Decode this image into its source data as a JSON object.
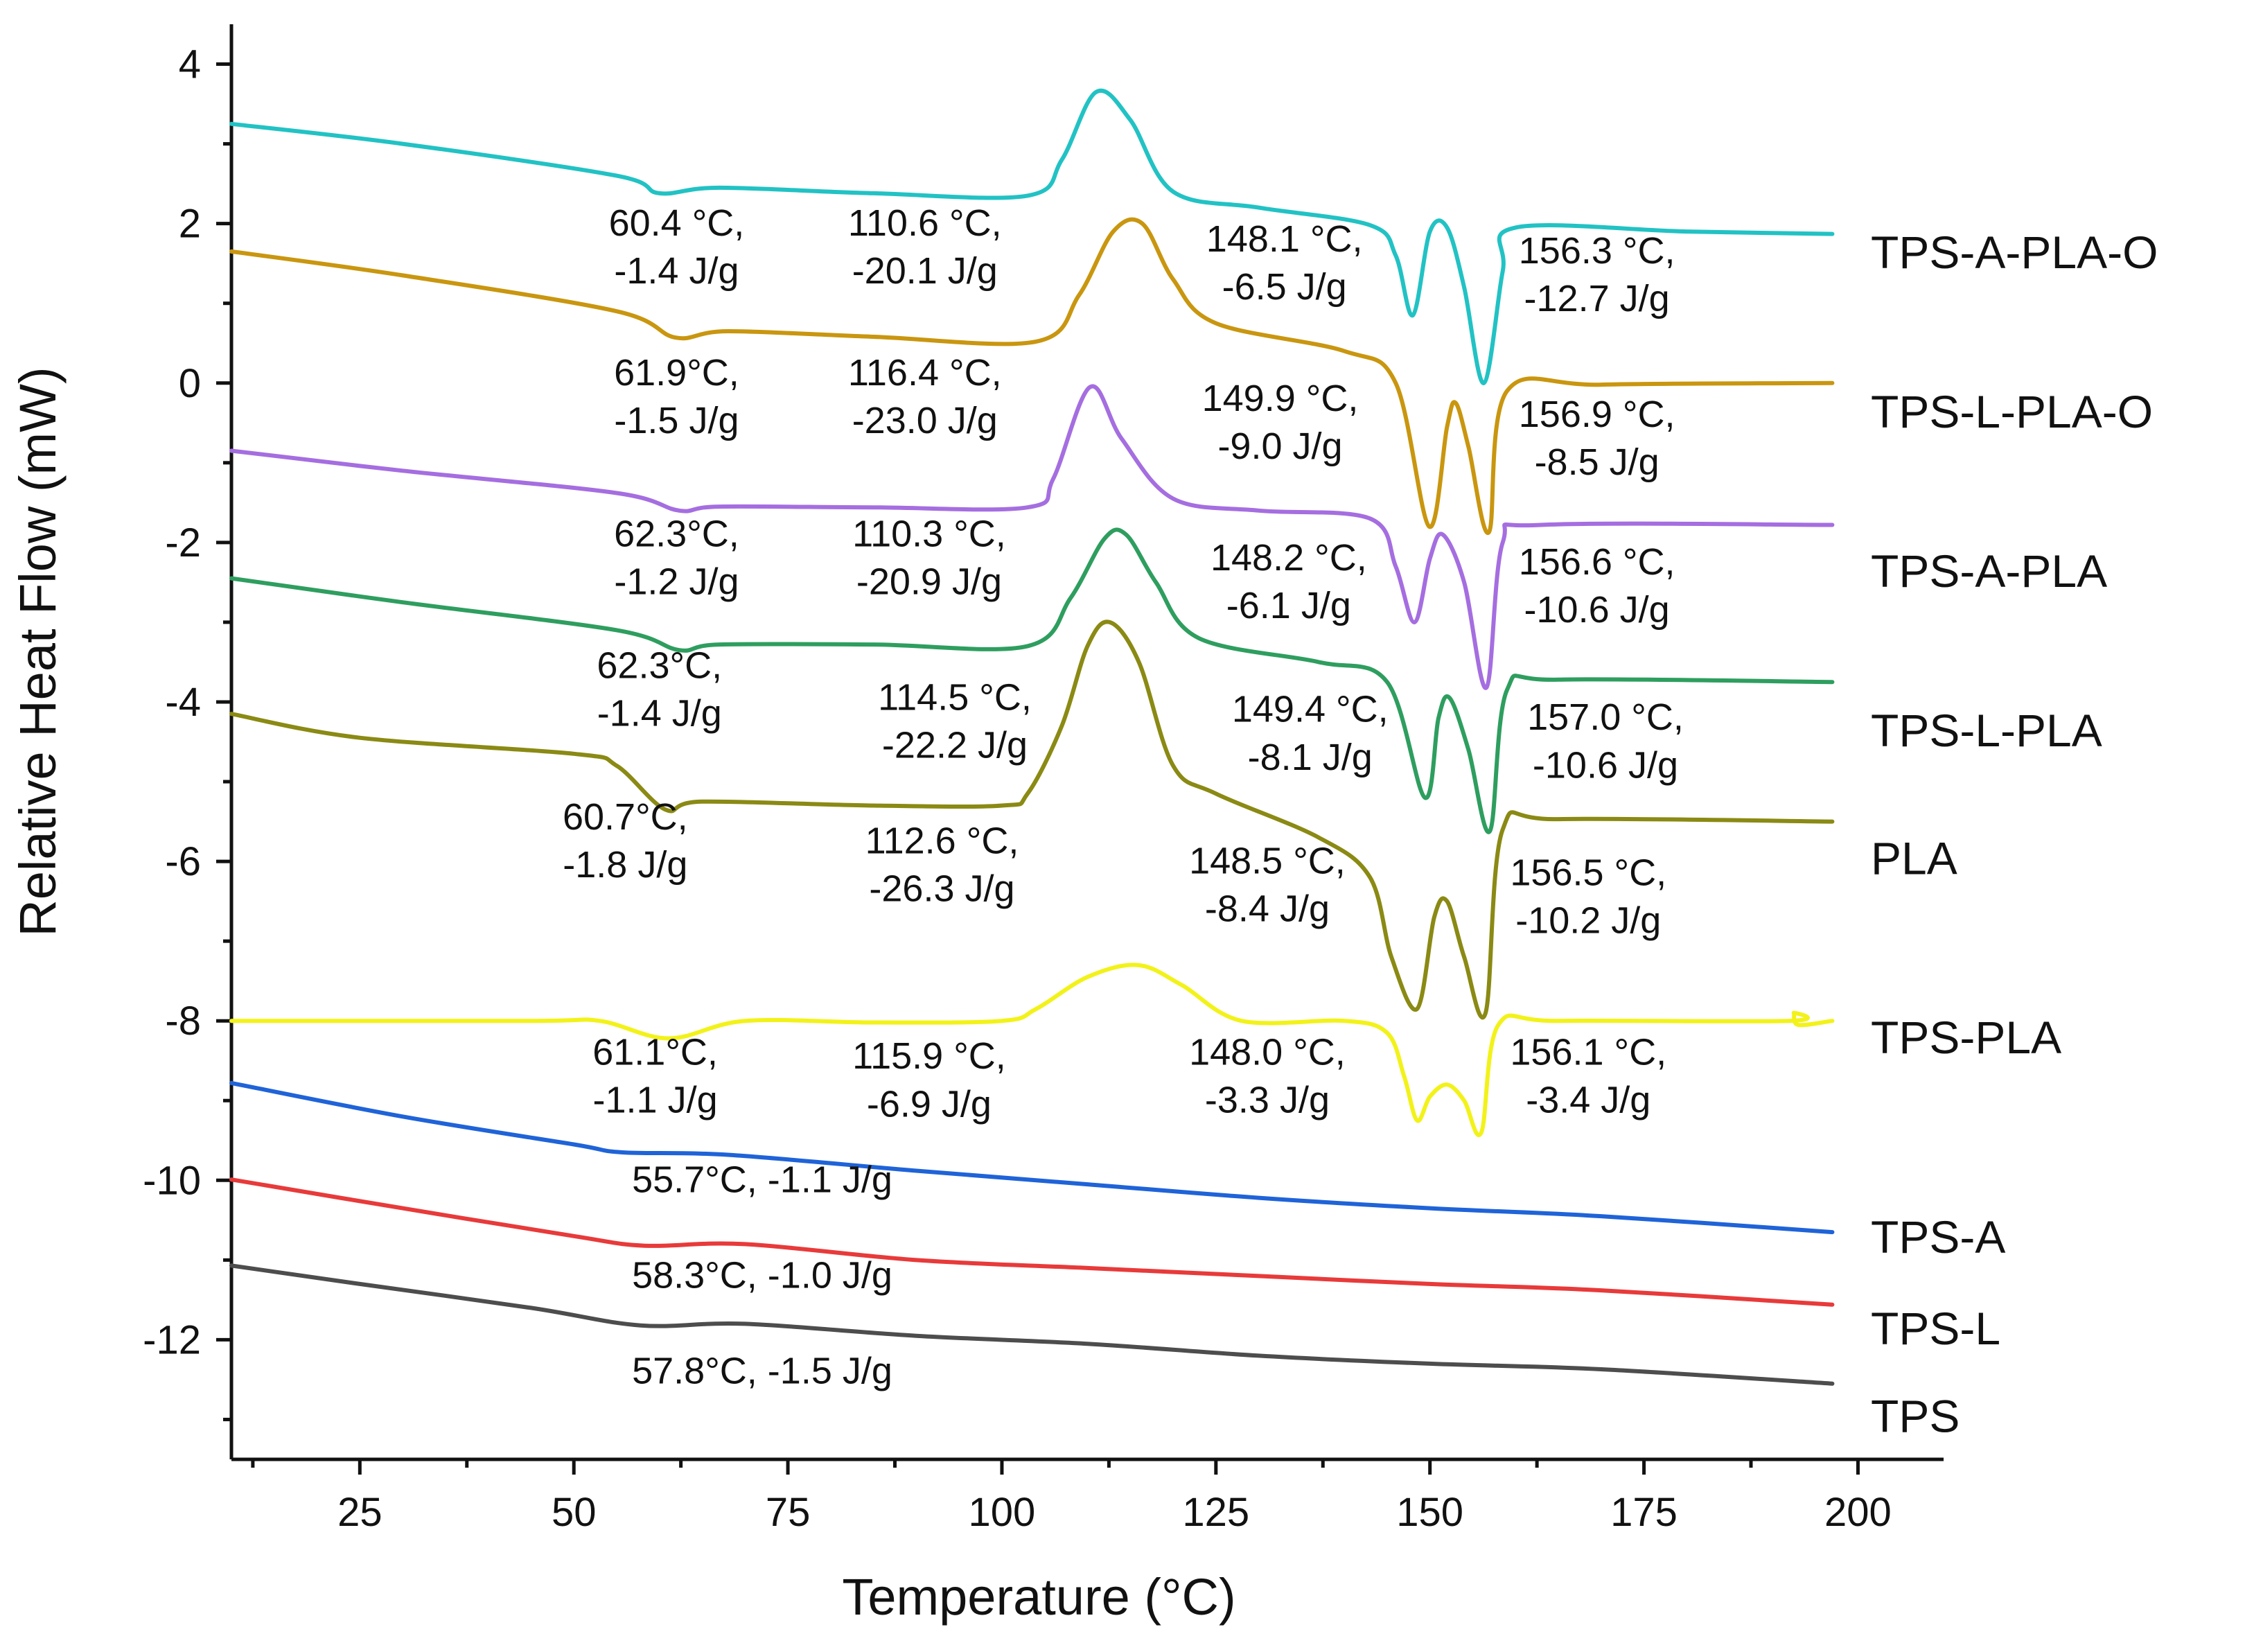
{
  "chart_data": {
    "type": "line",
    "title": "",
    "xlabel": "Temperature (°C)",
    "ylabel": "Relative Heat Flow (mW)",
    "xlim": [
      10,
      210
    ],
    "ylim": [
      -13.5,
      4.5
    ],
    "x_ticks": [
      25,
      50,
      75,
      100,
      125,
      150,
      175,
      200
    ],
    "y_ticks": [
      4,
      2,
      0,
      -2,
      -4,
      -6,
      -8,
      -10,
      -12
    ],
    "grid": false,
    "series": [
      {
        "name": "TPS-A-PLA-O",
        "color": "#22c2c4",
        "points": [
          [
            10,
            3.25
          ],
          [
            30,
            3.0
          ],
          [
            55,
            2.6
          ],
          [
            60,
            2.38
          ],
          [
            67,
            2.45
          ],
          [
            85,
            2.38
          ],
          [
            103,
            2.35
          ],
          [
            107,
            2.8
          ],
          [
            111,
            3.65
          ],
          [
            115,
            3.3
          ],
          [
            120,
            2.4
          ],
          [
            130,
            2.2
          ],
          [
            143,
            1.98
          ],
          [
            146,
            1.6
          ],
          [
            148,
            0.85
          ],
          [
            150,
            1.9
          ],
          [
            152,
            1.95
          ],
          [
            154,
            1.2
          ],
          [
            156.3,
            0.0
          ],
          [
            158.5,
            1.4
          ],
          [
            160,
            1.95
          ],
          [
            180,
            1.9
          ],
          [
            197,
            1.87
          ]
        ]
      },
      {
        "name": "TPS-L-PLA-O",
        "color": "#c9960f",
        "points": [
          [
            10,
            1.65
          ],
          [
            30,
            1.35
          ],
          [
            55,
            0.9
          ],
          [
            61.9,
            0.57
          ],
          [
            68,
            0.65
          ],
          [
            85,
            0.58
          ],
          [
            104,
            0.52
          ],
          [
            109,
            1.1
          ],
          [
            113,
            1.9
          ],
          [
            116.4,
            2.0
          ],
          [
            120,
            1.3
          ],
          [
            125,
            0.75
          ],
          [
            140,
            0.4
          ],
          [
            146,
            0.0
          ],
          [
            149.9,
            -1.8
          ],
          [
            152,
            -0.55
          ],
          [
            153,
            -0.25
          ],
          [
            154.5,
            -0.8
          ],
          [
            156.9,
            -1.87
          ],
          [
            159,
            -0.1
          ],
          [
            170,
            -0.02
          ],
          [
            197,
            0.0
          ]
        ]
      },
      {
        "name": "TPS-A-PLA",
        "color": "#a56ee0",
        "points": [
          [
            10,
            -0.85
          ],
          [
            30,
            -1.1
          ],
          [
            55,
            -1.38
          ],
          [
            62.3,
            -1.6
          ],
          [
            67,
            -1.55
          ],
          [
            85,
            -1.56
          ],
          [
            103,
            -1.56
          ],
          [
            106,
            -1.2
          ],
          [
            110.3,
            -0.05
          ],
          [
            114,
            -0.7
          ],
          [
            120,
            -1.45
          ],
          [
            130,
            -1.6
          ],
          [
            143,
            -1.7
          ],
          [
            146,
            -2.3
          ],
          [
            148.2,
            -3.0
          ],
          [
            150,
            -2.2
          ],
          [
            151.5,
            -1.9
          ],
          [
            154,
            -2.5
          ],
          [
            156.6,
            -3.82
          ],
          [
            158.5,
            -2.0
          ],
          [
            163,
            -1.78
          ],
          [
            197,
            -1.78
          ]
        ]
      },
      {
        "name": "TPS-L-PLA",
        "color": "#2e9e5f",
        "points": [
          [
            10,
            -2.45
          ],
          [
            30,
            -2.75
          ],
          [
            55,
            -3.1
          ],
          [
            62.3,
            -3.35
          ],
          [
            67,
            -3.28
          ],
          [
            85,
            -3.28
          ],
          [
            103,
            -3.3
          ],
          [
            108,
            -2.7
          ],
          [
            112,
            -1.95
          ],
          [
            114.5,
            -1.9
          ],
          [
            118,
            -2.5
          ],
          [
            123,
            -3.2
          ],
          [
            137,
            -3.5
          ],
          [
            145,
            -3.75
          ],
          [
            149.4,
            -5.2
          ],
          [
            151,
            -4.2
          ],
          [
            152.3,
            -3.95
          ],
          [
            154.5,
            -4.6
          ],
          [
            157,
            -5.62
          ],
          [
            159,
            -3.85
          ],
          [
            165,
            -3.72
          ],
          [
            197,
            -3.75
          ]
        ]
      },
      {
        "name": "PLA",
        "color": "#8a8a14",
        "points": [
          [
            10,
            -4.15
          ],
          [
            25,
            -4.45
          ],
          [
            50,
            -4.65
          ],
          [
            55,
            -4.8
          ],
          [
            60.7,
            -5.35
          ],
          [
            65,
            -5.25
          ],
          [
            85,
            -5.3
          ],
          [
            100,
            -5.3
          ],
          [
            103,
            -5.15
          ],
          [
            107,
            -4.3
          ],
          [
            110,
            -3.3
          ],
          [
            112.6,
            -3.0
          ],
          [
            116,
            -3.5
          ],
          [
            120,
            -4.8
          ],
          [
            125,
            -5.15
          ],
          [
            137,
            -5.7
          ],
          [
            143,
            -6.2
          ],
          [
            145.5,
            -7.2
          ],
          [
            148.5,
            -7.85
          ],
          [
            150.5,
            -6.7
          ],
          [
            152,
            -6.5
          ],
          [
            154,
            -7.2
          ],
          [
            156.5,
            -7.9
          ],
          [
            158.5,
            -5.6
          ],
          [
            165,
            -5.47
          ],
          [
            197,
            -5.5
          ]
        ]
      },
      {
        "name": "TPS-PLA",
        "color": "#f2f21a",
        "points": [
          [
            10,
            -8.0
          ],
          [
            45,
            -8.0
          ],
          [
            53,
            -8.0
          ],
          [
            61.1,
            -8.22
          ],
          [
            70,
            -8.0
          ],
          [
            85,
            -8.02
          ],
          [
            100,
            -8.0
          ],
          [
            104,
            -7.85
          ],
          [
            110,
            -7.45
          ],
          [
            115.9,
            -7.3
          ],
          [
            121,
            -7.55
          ],
          [
            128,
            -8.0
          ],
          [
            140,
            -8.0
          ],
          [
            145,
            -8.15
          ],
          [
            147,
            -8.7
          ],
          [
            148.5,
            -9.25
          ],
          [
            150,
            -8.95
          ],
          [
            152,
            -8.8
          ],
          [
            154,
            -9.0
          ],
          [
            156,
            -9.4
          ],
          [
            158,
            -8.05
          ],
          [
            165,
            -8.0
          ],
          [
            192,
            -8.0
          ],
          [
            192.5,
            -7.9
          ],
          [
            193,
            -8.05
          ],
          [
            197,
            -8.0
          ]
        ]
      },
      {
        "name": "TPS-A",
        "color": "#1f63d8",
        "points": [
          [
            10,
            -8.78
          ],
          [
            30,
            -9.2
          ],
          [
            50,
            -9.55
          ],
          [
            55.7,
            -9.65
          ],
          [
            68,
            -9.68
          ],
          [
            90,
            -9.88
          ],
          [
            110,
            -10.05
          ],
          [
            130,
            -10.22
          ],
          [
            150,
            -10.35
          ],
          [
            170,
            -10.45
          ],
          [
            197,
            -10.65
          ]
        ]
      },
      {
        "name": "TPS-L",
        "color": "#e83a3a",
        "points": [
          [
            10,
            -9.99
          ],
          [
            30,
            -10.35
          ],
          [
            50,
            -10.7
          ],
          [
            58.3,
            -10.82
          ],
          [
            70,
            -10.8
          ],
          [
            90,
            -11.0
          ],
          [
            110,
            -11.1
          ],
          [
            130,
            -11.2
          ],
          [
            150,
            -11.3
          ],
          [
            170,
            -11.38
          ],
          [
            197,
            -11.56
          ]
        ]
      },
      {
        "name": "TPS",
        "color": "#4d4d4d",
        "points": [
          [
            10,
            -11.07
          ],
          [
            25,
            -11.3
          ],
          [
            45,
            -11.6
          ],
          [
            57.8,
            -11.82
          ],
          [
            70,
            -11.8
          ],
          [
            90,
            -11.95
          ],
          [
            110,
            -12.05
          ],
          [
            130,
            -12.2
          ],
          [
            150,
            -12.3
          ],
          [
            170,
            -12.37
          ],
          [
            197,
            -12.55
          ]
        ]
      }
    ],
    "annotations": [
      {
        "text": "60.4 °C,",
        "x": 62,
        "y": 1.85
      },
      {
        "text": "-1.4 J/g",
        "x": 62,
        "y": 1.25
      },
      {
        "text": "110.6 °C,",
        "x": 91,
        "y": 1.85
      },
      {
        "text": "-20.1 J/g",
        "x": 91,
        "y": 1.25
      },
      {
        "text": "148.1 °C,",
        "x": 133,
        "y": 1.65
      },
      {
        "text": "-6.5 J/g",
        "x": 133,
        "y": 1.05
      },
      {
        "text": "156.3 °C,",
        "x": 169.5,
        "y": 1.5
      },
      {
        "text": "-12.7 J/g",
        "x": 169.5,
        "y": 0.9
      },
      {
        "text": "61.9°C,",
        "x": 62,
        "y": -0.03
      },
      {
        "text": "-1.5 J/g",
        "x": 62,
        "y": -0.63
      },
      {
        "text": "116.4 °C,",
        "x": 91,
        "y": -0.03
      },
      {
        "text": "-23.0 J/g",
        "x": 91,
        "y": -0.63
      },
      {
        "text": "149.9 °C,",
        "x": 132.5,
        "y": -0.35
      },
      {
        "text": "-9.0 J/g",
        "x": 132.5,
        "y": -0.95
      },
      {
        "text": "156.9 °C,",
        "x": 169.5,
        "y": -0.55
      },
      {
        "text": "-8.5 J/g",
        "x": 169.5,
        "y": -1.15
      },
      {
        "text": "62.3°C,",
        "x": 62,
        "y": -2.05
      },
      {
        "text": "-1.2 J/g",
        "x": 62,
        "y": -2.65
      },
      {
        "text": "110.3 °C,",
        "x": 91.5,
        "y": -2.05
      },
      {
        "text": "-20.9 J/g",
        "x": 91.5,
        "y": -2.65
      },
      {
        "text": "148.2 °C,",
        "x": 133.5,
        "y": -2.35
      },
      {
        "text": "-6.1 J/g",
        "x": 133.5,
        "y": -2.95
      },
      {
        "text": "156.6 °C,",
        "x": 169.5,
        "y": -2.4
      },
      {
        "text": "-10.6 J/g",
        "x": 169.5,
        "y": -3.0
      },
      {
        "text": "62.3°C,",
        "x": 60,
        "y": -3.7
      },
      {
        "text": "-1.4 J/g",
        "x": 60,
        "y": -4.3
      },
      {
        "text": "114.5 °C,",
        "x": 94.5,
        "y": -4.1
      },
      {
        "text": "-22.2 J/g",
        "x": 94.5,
        "y": -4.7
      },
      {
        "text": "149.4 °C,",
        "x": 136,
        "y": -4.25
      },
      {
        "text": "-8.1 J/g",
        "x": 136,
        "y": -4.85
      },
      {
        "text": "157.0 °C,",
        "x": 170.5,
        "y": -4.35
      },
      {
        "text": "-10.6 J/g",
        "x": 170.5,
        "y": -4.95
      },
      {
        "text": "60.7°C,",
        "x": 56,
        "y": -5.6
      },
      {
        "text": "-1.8 J/g",
        "x": 56,
        "y": -6.2
      },
      {
        "text": "112.6 °C,",
        "x": 93,
        "y": -5.9
      },
      {
        "text": "-26.3 J/g",
        "x": 93,
        "y": -6.5
      },
      {
        "text": "148.5 °C,",
        "x": 131,
        "y": -6.15
      },
      {
        "text": "-8.4 J/g",
        "x": 131,
        "y": -6.75
      },
      {
        "text": "156.5 °C,",
        "x": 168.5,
        "y": -6.3
      },
      {
        "text": "-10.2 J/g",
        "x": 168.5,
        "y": -6.9
      },
      {
        "text": "61.1°C,",
        "x": 59.5,
        "y": -8.55
      },
      {
        "text": "-1.1 J/g",
        "x": 59.5,
        "y": -9.15
      },
      {
        "text": "115.9 °C,",
        "x": 91.5,
        "y": -8.6
      },
      {
        "text": "-6.9 J/g",
        "x": 91.5,
        "y": -9.2
      },
      {
        "text": "148.0 °C,",
        "x": 131,
        "y": -8.55
      },
      {
        "text": "-3.3 J/g",
        "x": 131,
        "y": -9.15
      },
      {
        "text": "156.1 °C,",
        "x": 168.5,
        "y": -8.55
      },
      {
        "text": "-3.4 J/g",
        "x": 168.5,
        "y": -9.15
      },
      {
        "text": "55.7°C, -1.1 J/g",
        "x": 72,
        "y": -10.15
      },
      {
        "text": "58.3°C, -1.0 J/g",
        "x": 72,
        "y": -11.35
      },
      {
        "text": "57.8°C, -1.5 J/g",
        "x": 72,
        "y": -12.55
      }
    ],
    "series_labels": [
      {
        "text": "TPS-A-PLA-O",
        "y": 1.65
      },
      {
        "text": "TPS-L-PLA-O",
        "y": -0.35
      },
      {
        "text": "TPS-A-PLA",
        "y": -2.35
      },
      {
        "text": "TPS-L-PLA",
        "y": -4.35
      },
      {
        "text": "PLA",
        "y": -5.95
      },
      {
        "text": "TPS-PLA",
        "y": -8.2
      },
      {
        "text": "TPS-A",
        "y": -10.7
      },
      {
        "text": "TPS-L",
        "y": -11.85
      },
      {
        "text": "TPS",
        "y": -12.95
      }
    ]
  }
}
